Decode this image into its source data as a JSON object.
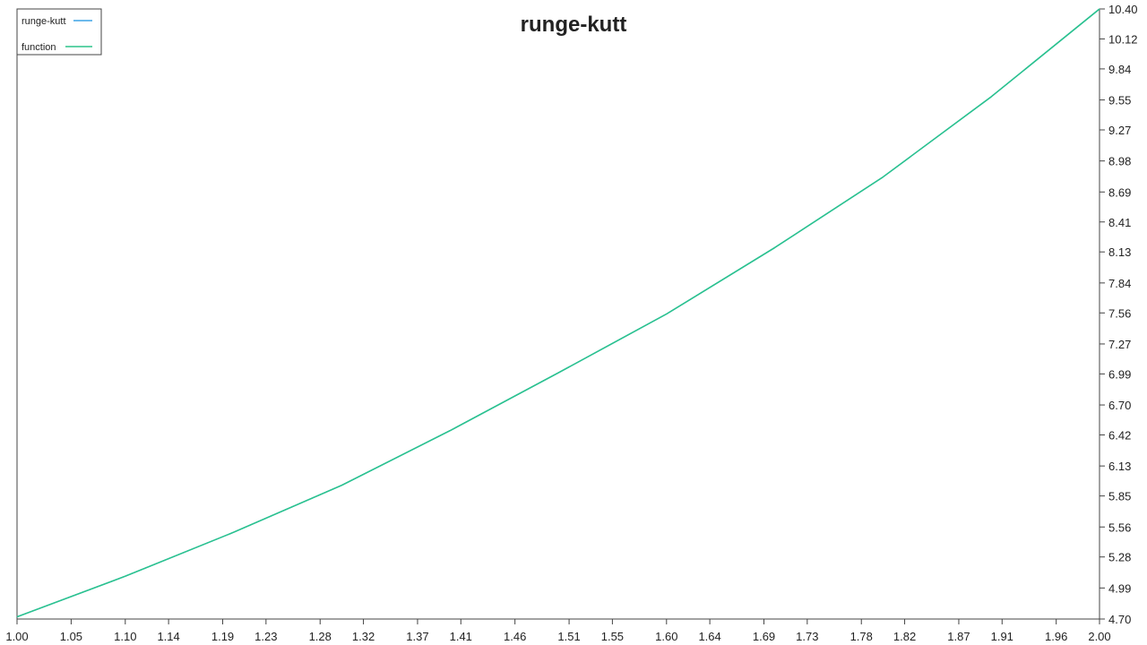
{
  "colors": {
    "background": "#ffffff",
    "axis": "#444444",
    "runge_kutt": "#3ba3e6",
    "function": "#2bc48a",
    "legend_border": "#444444"
  },
  "chart_data": {
    "type": "line",
    "title": "runge-kutt",
    "xlabel": "",
    "ylabel": "",
    "xlim": [
      1.0,
      2.0
    ],
    "ylim": [
      4.7,
      10.4
    ],
    "grid": false,
    "legend_position": "top-left",
    "x_ticks": [
      "1.00",
      "1.05",
      "1.10",
      "1.14",
      "1.19",
      "1.23",
      "1.28",
      "1.32",
      "1.37",
      "1.41",
      "1.46",
      "1.51",
      "1.55",
      "1.60",
      "1.64",
      "1.69",
      "1.73",
      "1.78",
      "1.82",
      "1.87",
      "1.91",
      "1.96",
      "2.00"
    ],
    "y_ticks": [
      "4.70",
      "4.99",
      "5.28",
      "5.56",
      "5.85",
      "6.13",
      "6.42",
      "6.70",
      "6.99",
      "7.27",
      "7.56",
      "7.84",
      "8.13",
      "8.41",
      "8.69",
      "8.98",
      "9.27",
      "9.55",
      "9.84",
      "10.12",
      "10.40"
    ],
    "x": [
      1.0,
      1.1,
      1.2,
      1.3,
      1.4,
      1.5,
      1.6,
      1.7,
      1.8,
      1.9,
      2.0
    ],
    "series": [
      {
        "name": "runge-kutt",
        "color": "#3ba3e6",
        "values": [
          4.72,
          5.1,
          5.51,
          5.95,
          6.46,
          7.0,
          7.55,
          8.17,
          8.83,
          9.58,
          10.4
        ]
      },
      {
        "name": "function",
        "color": "#2bc48a",
        "values": [
          4.72,
          5.1,
          5.51,
          5.95,
          6.46,
          7.0,
          7.55,
          8.17,
          8.83,
          9.58,
          10.4
        ]
      }
    ]
  }
}
